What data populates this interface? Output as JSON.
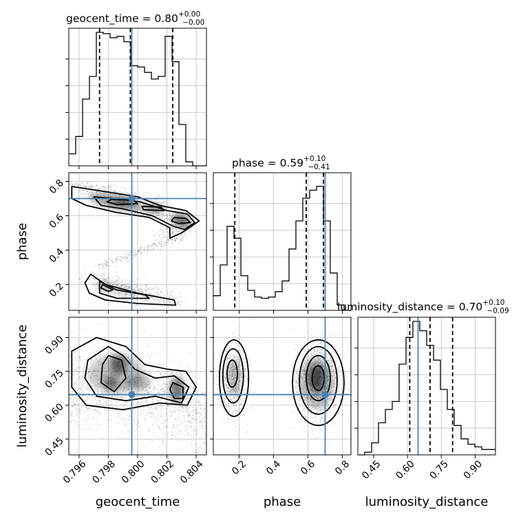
{
  "chart_data": {
    "type": "corner",
    "parameters": [
      "geocent_time",
      "phase",
      "luminosity_distance"
    ],
    "axis_labels": [
      "geocent_time",
      "phase",
      "luminosity_distance"
    ],
    "titles": [
      {
        "name": "geocent_time",
        "median": "0.80",
        "plus": "+0.00",
        "minus": "−0.00",
        "prefix": "geocent_time = "
      },
      {
        "name": "phase",
        "median": "0.59",
        "plus": "+0.10",
        "minus": "−0.41",
        "prefix": "phase = "
      },
      {
        "name": "luminosity_distance",
        "median": "0.70",
        "plus": "+0.10",
        "minus": "−0.09",
        "prefix": "luminosity_distance = "
      }
    ],
    "ranges": [
      [
        0.7953,
        0.8047
      ],
      [
        0.05,
        0.85
      ],
      [
        0.38,
        0.99
      ]
    ],
    "ticks": [
      {
        "values": [
          0.796,
          0.798,
          0.8,
          0.802,
          0.804
        ],
        "labels": [
          "0.796",
          "0.798",
          "0.800",
          "0.802",
          "0.804"
        ]
      },
      {
        "values": [
          0.2,
          0.4,
          0.6,
          0.8
        ],
        "labels": [
          "0.2",
          "0.4",
          "0.6",
          "0.8"
        ]
      },
      {
        "values": [
          0.45,
          0.6,
          0.75,
          0.9
        ],
        "labels": [
          "0.45",
          "0.60",
          "0.75",
          "0.90"
        ]
      }
    ],
    "truth": [
      0.7996,
      0.7,
      0.647
    ],
    "quantiles": [
      [
        0.7974,
        0.7995,
        0.8024
      ],
      [
        0.175,
        0.59,
        0.69
      ],
      [
        0.61,
        0.7,
        0.8
      ]
    ],
    "histograms": [
      {
        "edges_start": 0.7953,
        "bin_width": 0.00047,
        "counts": [
          0.09,
          0.22,
          0.5,
          0.67,
          1.0,
          0.99,
          0.96,
          0.97,
          0.93,
          0.75,
          0.74,
          0.7,
          0.65,
          0.67,
          0.97,
          0.78,
          0.31,
          0.03,
          0.0,
          0.0
        ]
      },
      {
        "edges_start": 0.05,
        "bin_width": 0.04,
        "counts": [
          0.11,
          0.34,
          0.63,
          0.54,
          0.26,
          0.15,
          0.1,
          0.09,
          0.1,
          0.14,
          0.22,
          0.46,
          0.67,
          0.84,
          0.9,
          0.93,
          0.67,
          0.28,
          0.04,
          0.0
        ]
      },
      {
        "edges_start": 0.38,
        "bin_width": 0.0305,
        "counts": [
          0.0,
          0.02,
          0.09,
          0.24,
          0.34,
          0.4,
          0.68,
          0.88,
          1.0,
          0.93,
          0.82,
          0.71,
          0.49,
          0.34,
          0.22,
          0.12,
          0.08,
          0.06,
          0.04,
          0.04
        ]
      }
    ],
    "histogram_yticks": [
      0.2,
      0.4,
      0.6,
      0.8
    ],
    "colors": {
      "truth": "#4682b4",
      "contour": "#000000",
      "density": "#000000",
      "grid": "#bfbfbf",
      "axes": "#000000"
    },
    "grid": true
  }
}
